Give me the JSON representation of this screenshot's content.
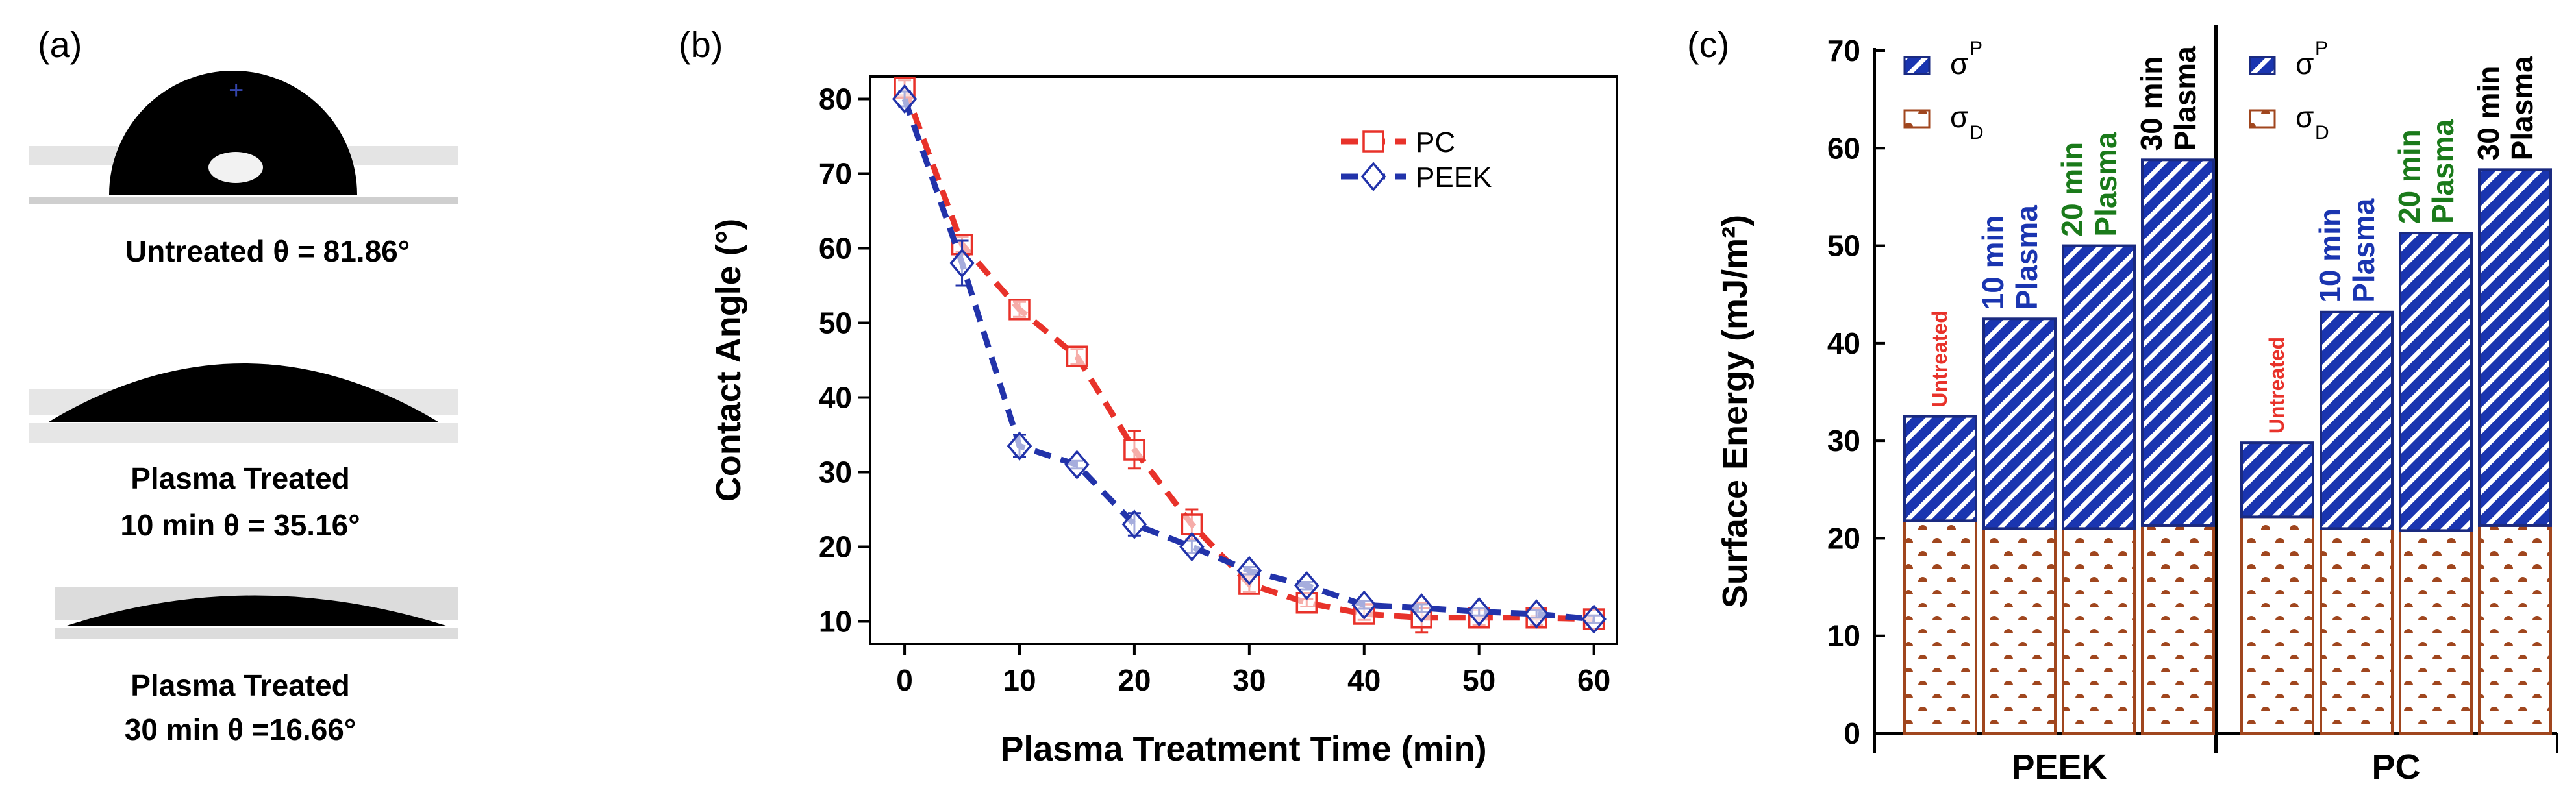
{
  "panels": {
    "a": "(a)",
    "b": "(b)",
    "c": "(c)"
  },
  "droplets": [
    {
      "line1": "Untreated θ = 81.86°",
      "line2": "",
      "angle_deg": 81.86
    },
    {
      "line1": "Plasma Treated",
      "line2": "10 min θ = 35.16°",
      "angle_deg": 35.16
    },
    {
      "line1": "Plasma Treated",
      "line2": "30 min θ =16.66°",
      "angle_deg": 16.66
    }
  ],
  "colors": {
    "pc": "#e8322a",
    "peek": "#2233aa",
    "polar_fill": "#1a35b0",
    "disp_stroke": "#a0461e",
    "green": "#1a7a1a",
    "red": "#e8322a"
  },
  "chart_data": [
    {
      "id": "b",
      "type": "line",
      "title": "",
      "xlabel": "Plasma Treatment Time (min)",
      "ylabel": "Contact Angle (°)",
      "xlim": [
        -3,
        62
      ],
      "ylim": [
        7,
        83
      ],
      "xticks": [
        0,
        10,
        20,
        30,
        40,
        50,
        60
      ],
      "yticks": [
        10,
        20,
        30,
        40,
        50,
        60,
        70,
        80
      ],
      "legend_position": "top-right",
      "x": [
        0,
        5,
        10,
        15,
        20,
        25,
        30,
        35,
        40,
        45,
        50,
        55,
        60
      ],
      "series": [
        {
          "name": "PC",
          "marker": "square",
          "values": [
            81.5,
            60.5,
            51.8,
            45.5,
            33.0,
            23.0,
            15.0,
            12.5,
            11.0,
            10.5,
            10.5,
            10.5,
            10.3
          ],
          "errors": [
            1.0,
            1.0,
            1.0,
            1.0,
            2.5,
            2.0,
            1.0,
            0.5,
            0.8,
            2.0,
            1.0,
            1.0,
            0.5
          ]
        },
        {
          "name": "PEEK",
          "marker": "diamond",
          "values": [
            80.0,
            58.0,
            33.5,
            31.0,
            23.0,
            20.0,
            16.8,
            14.8,
            12.2,
            11.8,
            11.3,
            11.0,
            10.3
          ],
          "errors": [
            1.0,
            3.0,
            1.5,
            0.5,
            1.5,
            0.8,
            0.5,
            0.5,
            0.5,
            0.5,
            0.5,
            0.5,
            0.5
          ]
        }
      ]
    },
    {
      "id": "c",
      "type": "bar",
      "stacked": true,
      "title": "",
      "ylabel": "Surface Energy (mJ/m²)",
      "ylim": [
        0,
        70
      ],
      "yticks": [
        0,
        10,
        20,
        30,
        40,
        50,
        60,
        70
      ],
      "legend": [
        {
          "symbol": "σ",
          "sup": "P",
          "sub": "",
          "pattern": "hatch"
        },
        {
          "symbol": "σ",
          "sup": "",
          "sub": "D",
          "pattern": "dots"
        }
      ],
      "groups": [
        {
          "name": "PEEK",
          "bars": [
            {
              "label": [
                "Untreated"
              ],
              "colors": [
                "red"
              ],
              "dispersive": 21.8,
              "total": 32.5
            },
            {
              "label": [
                "10 min",
                "Plasma"
              ],
              "colors": [
                "blue",
                "blue"
              ],
              "dispersive": 21.0,
              "total": 42.5
            },
            {
              "label": [
                "20 min",
                "Plasma"
              ],
              "colors": [
                "green",
                "green"
              ],
              "dispersive": 21.0,
              "total": 50.0
            },
            {
              "label": [
                "30 min",
                "Plasma"
              ],
              "colors": [
                "black",
                "black"
              ],
              "dispersive": 21.3,
              "total": 58.8
            }
          ]
        },
        {
          "name": "PC",
          "bars": [
            {
              "label": [
                "Untreated"
              ],
              "colors": [
                "red"
              ],
              "dispersive": 22.2,
              "total": 29.8
            },
            {
              "label": [
                "10 min",
                "Plasma"
              ],
              "colors": [
                "blue",
                "blue"
              ],
              "dispersive": 21.0,
              "total": 43.2
            },
            {
              "label": [
                "20 min",
                "Plasma"
              ],
              "colors": [
                "green",
                "green"
              ],
              "dispersive": 20.8,
              "total": 51.3
            },
            {
              "label": [
                "30 min",
                "Plasma"
              ],
              "colors": [
                "black",
                "black"
              ],
              "dispersive": 21.3,
              "total": 57.8
            }
          ]
        }
      ]
    }
  ]
}
